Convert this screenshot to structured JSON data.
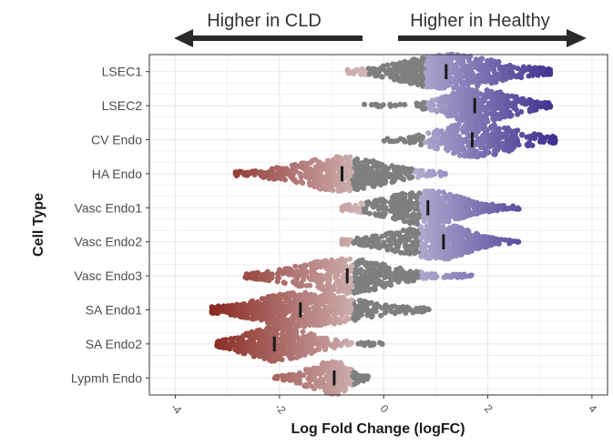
{
  "chart_data": {
    "type": "scatter",
    "subtype": "beeswarm",
    "xlabel": "Log Fold Change (logFC)",
    "ylabel": "Cell Type",
    "xlim": [
      -4.5,
      4.3
    ],
    "xticks": [
      -4,
      -2,
      0,
      2,
      4
    ],
    "tick_label_rotation_deg": 45,
    "grid": true,
    "legend": "none",
    "arrows": {
      "left_label": "Higher in CLD",
      "right_label": "Higher in Healthy"
    },
    "colors": {
      "nonsignificant": "#7f7f7f",
      "higher_in_healthy": "#3d2f8f",
      "higher_in_cld": "#8a2a22",
      "median_bar": "#1a1a1a",
      "grid": "#ebebeb",
      "panel_border": "#333333"
    },
    "categories": [
      "LSEC1",
      "LSEC2",
      "CV Endo",
      "HA Endo",
      "Vasc Endo1",
      "Vasc Endo2",
      "Vasc Endo3",
      "SA Endo1",
      "SA Endo2",
      "Lypmh Endo"
    ],
    "series": [
      {
        "category": "LSEC1",
        "median": 1.2,
        "min": -0.7,
        "max": 3.2,
        "core_min": -0.1,
        "core_max": 2.8,
        "nonsig_range": [
          -0.3,
          0.8
        ],
        "count": 620
      },
      {
        "category": "LSEC2",
        "median": 1.75,
        "min": -0.4,
        "max": 3.2,
        "core_min": 0.9,
        "core_max": 2.9,
        "nonsig_range": [
          -0.4,
          0.8
        ],
        "count": 480
      },
      {
        "category": "CV Endo",
        "median": 1.7,
        "min": 0.0,
        "max": 3.3,
        "core_min": 0.7,
        "core_max": 3.0,
        "nonsig_range": [
          0.0,
          0.8
        ],
        "count": 380
      },
      {
        "category": "HA Endo",
        "median": -0.8,
        "min": -2.9,
        "max": 1.2,
        "core_min": -2.2,
        "core_max": 0.5,
        "nonsig_range": [
          -0.6,
          0.6
        ],
        "count": 520
      },
      {
        "category": "Vasc Endo1",
        "median": 0.85,
        "min": -0.8,
        "max": 2.6,
        "core_min": -0.4,
        "core_max": 1.9,
        "nonsig_range": [
          -0.4,
          0.7
        ],
        "count": 540
      },
      {
        "category": "Vasc Endo2",
        "median": 1.15,
        "min": -0.8,
        "max": 2.6,
        "core_min": -0.3,
        "core_max": 2.0,
        "nonsig_range": [
          -0.6,
          0.7
        ],
        "count": 520
      },
      {
        "category": "Vasc Endo3",
        "median": -0.7,
        "min": -2.7,
        "max": 1.7,
        "core_min": -2.2,
        "core_max": 0.6,
        "nonsig_range": [
          -0.6,
          0.7
        ],
        "count": 520
      },
      {
        "category": "SA Endo1",
        "median": -1.6,
        "min": -3.3,
        "max": 0.9,
        "core_min": -3.0,
        "core_max": 0.1,
        "nonsig_range": [
          -0.6,
          0.9
        ],
        "count": 700
      },
      {
        "category": "SA Endo2",
        "median": -2.1,
        "min": -3.2,
        "max": 0.0,
        "core_min": -3.0,
        "core_max": -1.0,
        "nonsig_range": [
          -0.6,
          0.0
        ],
        "count": 480
      },
      {
        "category": "Lypmh Endo",
        "median": -0.95,
        "min": -2.1,
        "max": -0.3,
        "core_min": -1.7,
        "core_max": -0.5,
        "nonsig_range": [
          -0.6,
          -0.3
        ],
        "count": 230
      }
    ]
  }
}
